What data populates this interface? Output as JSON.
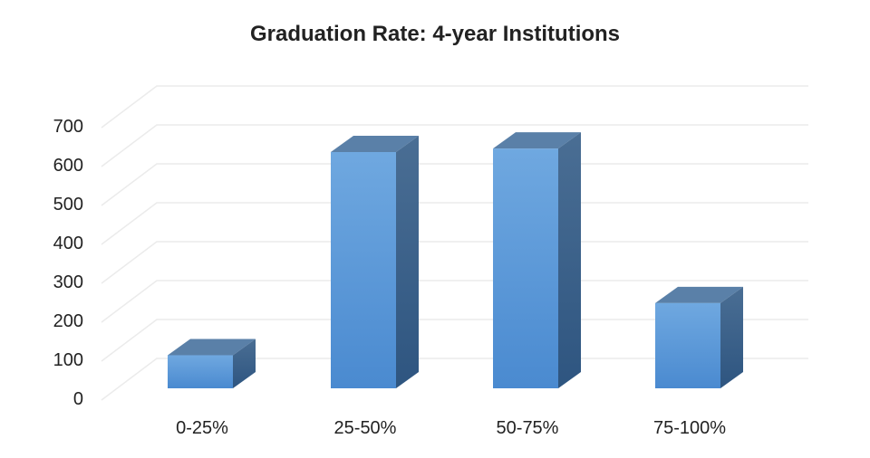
{
  "chart_data": {
    "type": "bar",
    "style": "3d-column",
    "title": "Graduation Rate: 4-year Institutions",
    "xlabel": "",
    "ylabel": "",
    "categories": [
      "0-25%",
      "25-50%",
      "50-75%",
      "75-100%"
    ],
    "values": [
      85,
      607,
      616,
      219
    ],
    "ylim": [
      0,
      700
    ],
    "yticks": [
      0,
      100,
      200,
      300,
      400,
      500,
      600,
      700
    ],
    "grid": true,
    "legend": null
  },
  "colors": {
    "bar_front_top": "#6fa8e0",
    "bar_front_bottom": "#4a8ad0",
    "bar_top": "#5a80a8",
    "bar_side_top": "#4a6e94",
    "bar_side_bottom": "#2e5580",
    "grid": "#ebebeb"
  }
}
